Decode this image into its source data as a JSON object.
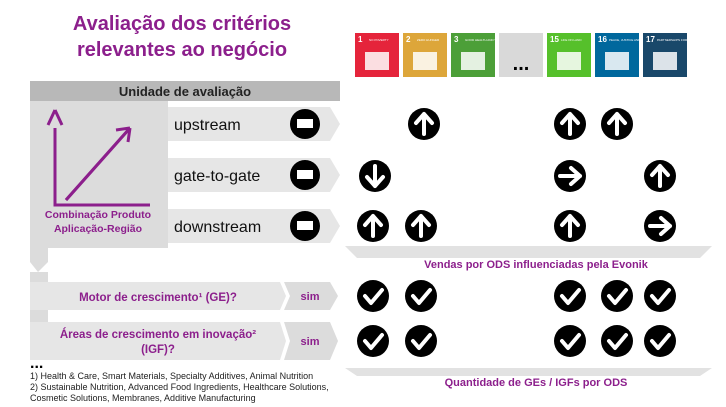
{
  "header": {
    "title_lines": [
      "Avaliação dos critérios",
      "relevantes ao negócio"
    ]
  },
  "sdgs": [
    {
      "number": "1",
      "label": "NO POVERTY"
    },
    {
      "number": "2",
      "label": "ZERO HUNGER"
    },
    {
      "number": "3",
      "label": "GOOD HEALTH AND WELL-BEING"
    },
    {
      "number": "...",
      "label": ""
    },
    {
      "number": "15",
      "label": "LIFE ON LAND"
    },
    {
      "number": "16",
      "label": "PEACE, JUSTICE AND STRONG INSTITUTIONS"
    },
    {
      "number": "17",
      "label": "PARTNERSHIPS FOR THE GOALS"
    }
  ],
  "unit_header": "Unidade de avaliação",
  "rows": [
    "upstream",
    "gate-to-gate",
    "downstream"
  ],
  "axis_label_lines": [
    "Combinação Produto",
    "Aplicação-Região"
  ],
  "sales_label": "Vendas por ODS influenciadas pela Evonik",
  "questions": [
    {
      "text_lines": [
        "Motor de crescimento¹ (GE)?"
      ],
      "answer": "sim"
    },
    {
      "text_lines": [
        "Áreas de crescimento em inovação²",
        "(IGF)?"
      ],
      "answer": "sim"
    }
  ],
  "ellipsis": "...",
  "footnotes": [
    "1) Health & Care, Smart Materials, Specialty Additives, Animal Nutrition",
    "2) Sustainable Nutrition, Advanced Food Ingredients, Healthcare Solutions,",
    "Cosmetic Solutions, Membranes, Additive Manufacturing"
  ],
  "count_label": "Quantidade de GEs / IGFs por ODS"
}
